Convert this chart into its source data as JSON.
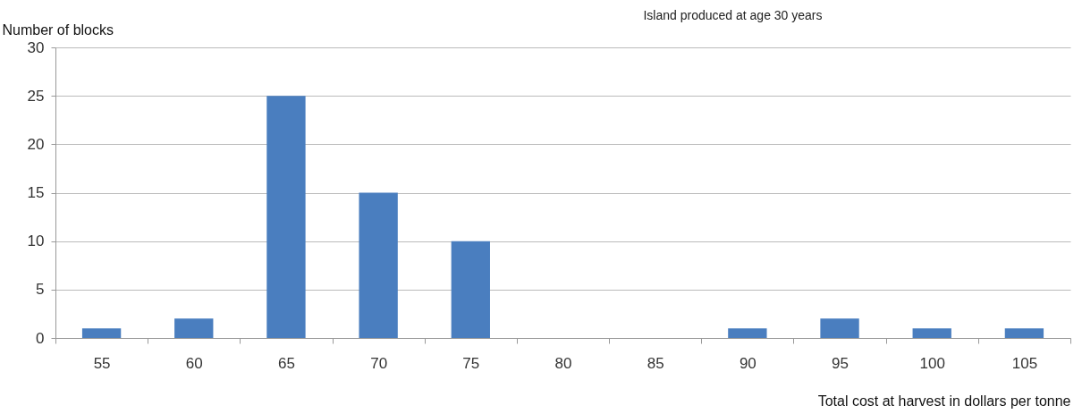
{
  "chart_data": {
    "type": "bar",
    "title": "Island produced at age 30 years",
    "ylabel": "Number of blocks",
    "xlabel": "Total cost at harvest in dollars per tonne",
    "categories": [
      "55",
      "60",
      "65",
      "70",
      "75",
      "80",
      "85",
      "90",
      "95",
      "100",
      "105"
    ],
    "values": [
      1,
      2,
      25,
      15,
      10,
      0,
      0,
      1,
      2,
      1,
      1
    ],
    "color": "#4a7ebf",
    "ylim": [
      0,
      30
    ],
    "yticks": [
      0,
      5,
      10,
      15,
      20,
      25,
      30
    ],
    "grid": "y"
  }
}
